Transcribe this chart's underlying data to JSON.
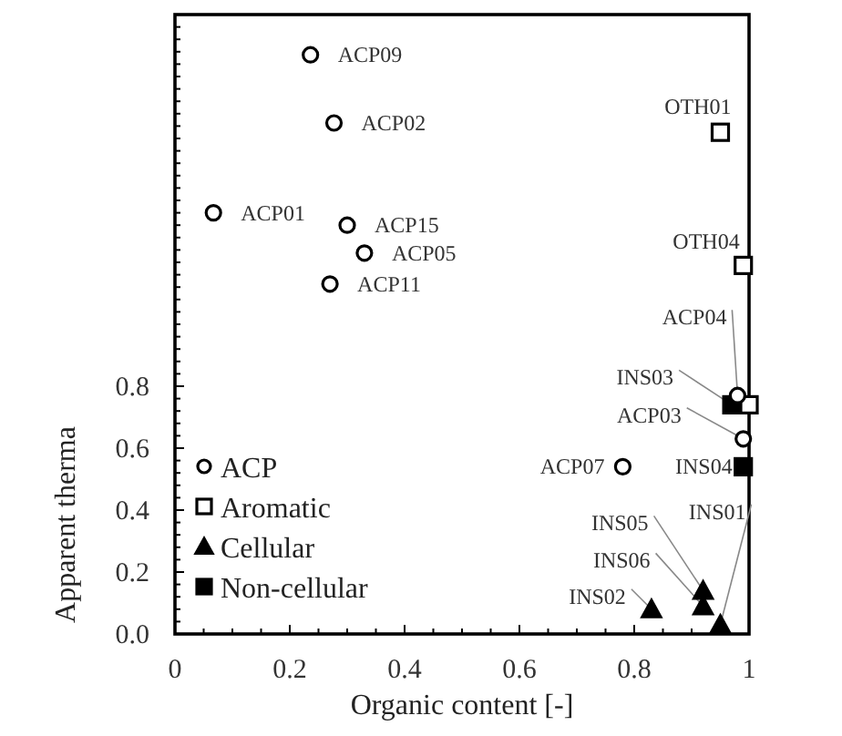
{
  "chart_data": {
    "type": "scatter",
    "xlabel": "Organic content [-]",
    "ylabel": "Apparent therma",
    "xlim": [
      0,
      1
    ],
    "xticks": [
      0,
      0.2,
      0.4,
      0.6,
      0.8,
      1
    ],
    "ylim": [
      0,
      2
    ],
    "yticks": [
      {
        "value": 0,
        "label": "0.0"
      },
      {
        "value": 0.2,
        "label": "0.2"
      },
      {
        "value": 0.4,
        "label": "0.4"
      },
      {
        "value": 0.6,
        "label": "0.6"
      },
      {
        "value": 0.8,
        "label": "0.8"
      }
    ],
    "legend": "bottom left",
    "grid": false,
    "series": [
      {
        "name": "ACP",
        "color": "#ffffff",
        "marker": "circle",
        "x": [
          0.236,
          0.277,
          0.067,
          0.3,
          0.33,
          0.27,
          0.78,
          0.99,
          0.98
        ],
        "values": [
          1.87,
          1.65,
          1.36,
          1.32,
          1.23,
          1.13,
          0.54,
          0.63,
          0.77
        ]
      },
      {
        "name": "Aromatic",
        "color": "#ffffff",
        "marker": "square",
        "x": [
          0.95,
          0.99,
          1.0
        ],
        "values": [
          1.62,
          1.19,
          0.74
        ]
      },
      {
        "name": "Cellular",
        "color": "#000000",
        "marker": "triangle",
        "x": [
          0.92,
          0.92,
          0.83,
          0.95
        ],
        "values": [
          0.14,
          0.09,
          0.08,
          0.03
        ]
      },
      {
        "name": "Non-cellular",
        "color": "#000000",
        "marker": "square",
        "x": [
          0.97,
          0.99
        ],
        "values": [
          0.74,
          0.54
        ]
      }
    ],
    "annotations": [
      {
        "text": "ACP09",
        "x": 0.236,
        "y": 1.87
      },
      {
        "text": "ACP02",
        "x": 0.277,
        "y": 1.65
      },
      {
        "text": "ACP01",
        "x": 0.067,
        "y": 1.36
      },
      {
        "text": "ACP15",
        "x": 0.3,
        "y": 1.32
      },
      {
        "text": "ACP05",
        "x": 0.33,
        "y": 1.23
      },
      {
        "text": "ACP11",
        "x": 0.27,
        "y": 1.13
      },
      {
        "text": "OTH01",
        "x": 0.95,
        "y": 1.62
      },
      {
        "text": "OTH04",
        "x": 0.99,
        "y": 1.19
      },
      {
        "text": "ACP04",
        "x": 0.98,
        "y": 0.77
      },
      {
        "text": "INS03",
        "x": 0.97,
        "y": 0.74
      },
      {
        "text": "ACP03",
        "x": 0.99,
        "y": 0.63
      },
      {
        "text": "ACP07",
        "x": 0.78,
        "y": 0.54
      },
      {
        "text": "INS04",
        "x": 0.99,
        "y": 0.54
      },
      {
        "text": "INS05",
        "x": 0.92,
        "y": 0.14
      },
      {
        "text": "INS06",
        "x": 0.92,
        "y": 0.09
      },
      {
        "text": "INS02",
        "x": 0.83,
        "y": 0.08
      },
      {
        "text": "INS01",
        "x": 0.95,
        "y": 0.03
      }
    ]
  }
}
